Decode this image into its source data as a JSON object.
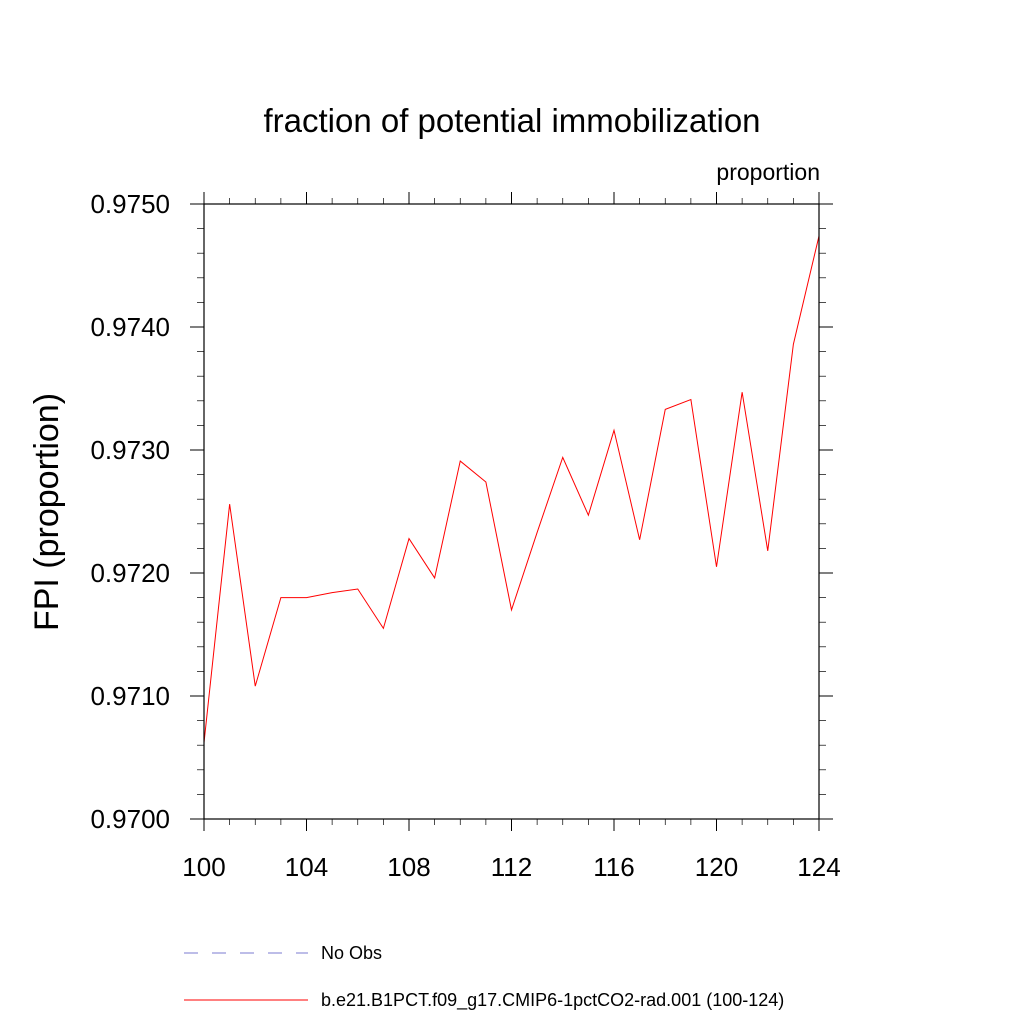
{
  "chart_data": {
    "type": "line",
    "title": "fraction of potential immobilization",
    "units_label": "proportion",
    "ylabel": "FPI  (proportion)",
    "xlabel": "",
    "xlim": [
      100,
      124
    ],
    "ylim": [
      0.97,
      0.975
    ],
    "x_ticks": [
      "100",
      "104",
      "108",
      "112",
      "116",
      "120",
      "124"
    ],
    "y_ticks": [
      "0.9700",
      "0.9710",
      "0.9720",
      "0.9730",
      "0.9740",
      "0.9750"
    ],
    "x_tick_values": [
      100,
      104,
      108,
      112,
      116,
      120,
      124
    ],
    "y_tick_values": [
      0.97,
      0.971,
      0.972,
      0.973,
      0.974,
      0.975
    ],
    "grid": false,
    "legend_position": "bottom",
    "series": [
      {
        "name": "b.e21.B1PCT.f09_g17.CMIP6-1pctCO2-rad.001 (100-124)",
        "color": "#ff0000",
        "style": "solid",
        "x": [
          100,
          101,
          102,
          103,
          104,
          105,
          106,
          107,
          108,
          109,
          110,
          111,
          112,
          113,
          114,
          115,
          116,
          117,
          118,
          119,
          120,
          121,
          122,
          123,
          124
        ],
        "values": [
          0.97062,
          0.97256,
          0.97108,
          0.9718,
          0.9718,
          0.97184,
          0.97187,
          0.97155,
          0.97228,
          0.97196,
          0.97291,
          0.97274,
          0.9717,
          0.97233,
          0.97294,
          0.97247,
          0.97316,
          0.97227,
          0.97333,
          0.97341,
          0.97205,
          0.97347,
          0.97218,
          0.97386,
          0.97474
        ]
      }
    ],
    "legend": [
      {
        "label": "No Obs",
        "color": "#7b7bd0",
        "style": "dashed"
      },
      {
        "label": "b.e21.B1PCT.f09_g17.CMIP6-1pctCO2-rad.001 (100-124)",
        "color": "#ff0000",
        "style": "solid"
      }
    ]
  }
}
